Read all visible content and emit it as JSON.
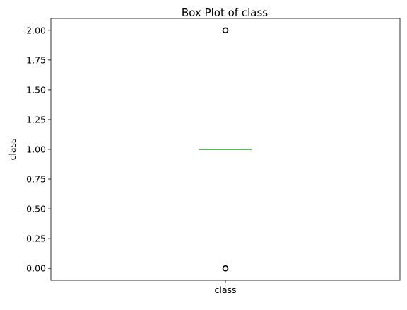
{
  "chart_data": {
    "type": "box",
    "title": "Box Plot of class",
    "xlabel": "",
    "ylabel": "class",
    "categories": [
      "class"
    ],
    "ylim": [
      -0.1,
      2.1
    ],
    "yticks": [
      0.0,
      0.25,
      0.5,
      0.75,
      1.0,
      1.25,
      1.5,
      1.75,
      2.0
    ],
    "ytick_labels": [
      "0.00",
      "0.25",
      "0.50",
      "0.75",
      "1.00",
      "1.25",
      "1.50",
      "1.75",
      "2.00"
    ],
    "boxes": [
      {
        "category": "class",
        "whisker_low": 1.0,
        "q1": 1.0,
        "median": 1.0,
        "q3": 1.0,
        "whisker_high": 1.0,
        "outliers": [
          0.0,
          2.0
        ]
      }
    ],
    "grid": false,
    "colors": {
      "median": "#2ca02c",
      "box": "#1f77b4",
      "whisker": "#000000",
      "outlier": "#000000"
    }
  }
}
